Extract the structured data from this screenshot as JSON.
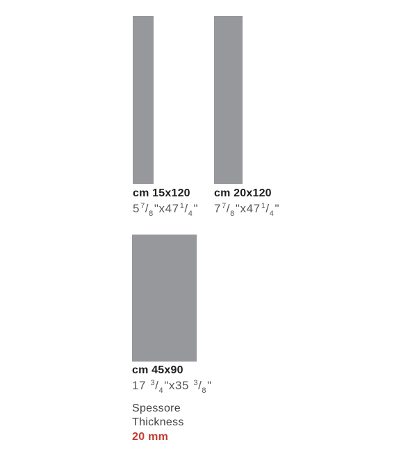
{
  "colors": {
    "tile_fill": "#97989b",
    "metric_label_text": "#1d1d1b",
    "imperial_label_text": "#56575a",
    "thickness_label_text": "#404144",
    "thickness_value_text": "#c13a30",
    "background": "#ffffff"
  },
  "tiles": [
    {
      "id": "15x120",
      "metric_label": "cm 15x120",
      "imperial_full": "5 7/8\" x 47 1/4\"",
      "imperial": {
        "base1": "5",
        "sup1": "7",
        "slash1": "/",
        "sub1": "8",
        "mid": "\"x47",
        "sup2": "1",
        "slash2": "/",
        "sub2": "4",
        "end": "\""
      }
    },
    {
      "id": "20x120",
      "metric_label": "cm 20x120",
      "imperial_full": "7 7/8\" x 47 1/4\"",
      "imperial": {
        "base1": "7",
        "sup1": "7",
        "slash1": "/",
        "sub1": "8",
        "mid": "\"x47",
        "sup2": "1",
        "slash2": "/",
        "sub2": "4",
        "end": "\""
      }
    },
    {
      "id": "45x90",
      "metric_label": "cm 45x90",
      "imperial_full": "17 3/4\" x 35 3/8\"",
      "imperial": {
        "base1": "17 ",
        "sup1": "3",
        "slash1": "/",
        "sub1": "4",
        "mid": "\"x35 ",
        "sup2": "3",
        "slash2": "/",
        "sub2": "8",
        "end": "\""
      }
    }
  ],
  "thickness": {
    "label_it": "Spessore",
    "label_en": "Thickness",
    "value": "20 mm"
  }
}
